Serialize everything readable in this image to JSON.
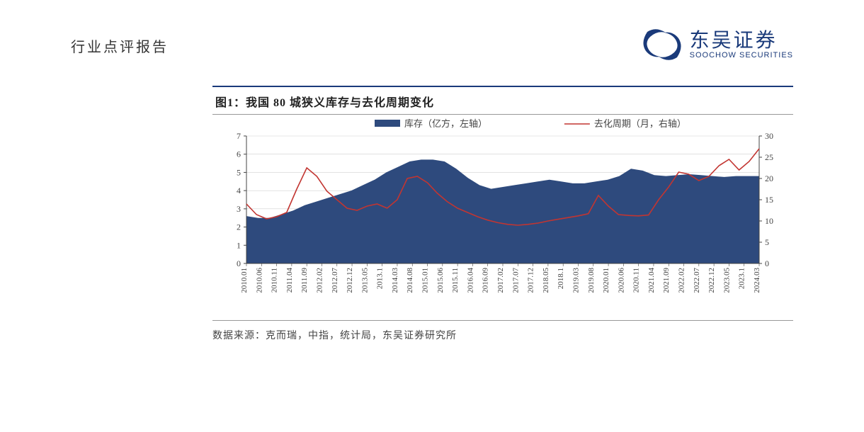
{
  "doc_title": "行业点评报告",
  "brand": {
    "ch": "东吴证券",
    "en": "SOOCHOW SECURITIES",
    "logo_color": "#1a3a7a"
  },
  "chart": {
    "type": "combo",
    "title": "图1：我国 80 城狭义库存与去化周期变化",
    "legend": {
      "area": "库存（亿方，左轴）",
      "line": "去化周期（月，右轴）"
    },
    "left_axis": {
      "label": "",
      "min": 0,
      "max": 7,
      "step": 1,
      "ticks": [
        0,
        1,
        2,
        3,
        4,
        5,
        6,
        7
      ]
    },
    "right_axis": {
      "label": "",
      "min": 0,
      "max": 30,
      "step": 5,
      "ticks": [
        0,
        5,
        10,
        15,
        20,
        25,
        30
      ]
    },
    "x_labels": [
      "2010.01",
      "2010.06",
      "2010.11",
      "2011.04",
      "2011.09",
      "2012.02",
      "2012.07",
      "2012.12",
      "2013.05",
      "2013.1",
      "2014.03",
      "2014.08",
      "2015.01",
      "2015.06",
      "2015.11",
      "2016.04",
      "2016.09",
      "2017.02",
      "2017.07",
      "2017.12",
      "2018.05",
      "2018.1",
      "2019.03",
      "2019.08",
      "2020.01",
      "2020.06",
      "2020.11",
      "2021.04",
      "2021.09",
      "2022.02",
      "2022.07",
      "2022.12",
      "2023.05",
      "2023.1",
      "2024.03"
    ],
    "area_values": [
      2.6,
      2.5,
      2.5,
      2.7,
      2.9,
      3.2,
      3.4,
      3.6,
      3.8,
      4.0,
      4.3,
      4.6,
      5.0,
      5.3,
      5.6,
      5.7,
      5.7,
      5.6,
      5.2,
      4.7,
      4.3,
      4.1,
      4.2,
      4.3,
      4.4,
      4.5,
      4.6,
      4.5,
      4.4,
      4.4,
      4.5,
      4.6,
      4.8,
      5.2,
      5.1,
      4.85,
      4.8,
      4.85,
      4.9,
      4.85,
      4.8,
      4.75,
      4.8,
      4.8,
      4.8
    ],
    "line_values": [
      14.0,
      11.5,
      10.5,
      11.0,
      12.0,
      17.5,
      22.5,
      20.5,
      17.0,
      15.0,
      13.0,
      12.5,
      13.5,
      14.0,
      13.0,
      15.0,
      20.0,
      20.5,
      19.0,
      16.5,
      14.5,
      13.0,
      12.0,
      11.0,
      10.2,
      9.6,
      9.2,
      9.0,
      9.2,
      9.5,
      10.0,
      10.4,
      10.8,
      11.2,
      11.7,
      16.0,
      13.5,
      11.5,
      11.3,
      11.2,
      11.4,
      15.0,
      18.0,
      21.5,
      21.0,
      19.5,
      20.5,
      23.0,
      24.5,
      22.0,
      24.0,
      27.0
    ],
    "colors": {
      "area_fill": "#2e4a7d",
      "line_stroke": "#c23531",
      "grid": "#d0d0d0",
      "axis": "#444",
      "text": "#444",
      "background": "#ffffff"
    },
    "stroke_width": {
      "line": 1.6,
      "grid": 0.6,
      "axis": 1
    },
    "font": {
      "axis": 12,
      "legend": 13,
      "title": 16,
      "family": "SimSun"
    }
  },
  "source_line": "数据来源：克而瑞，中指，统计局，东吴证券研究所"
}
